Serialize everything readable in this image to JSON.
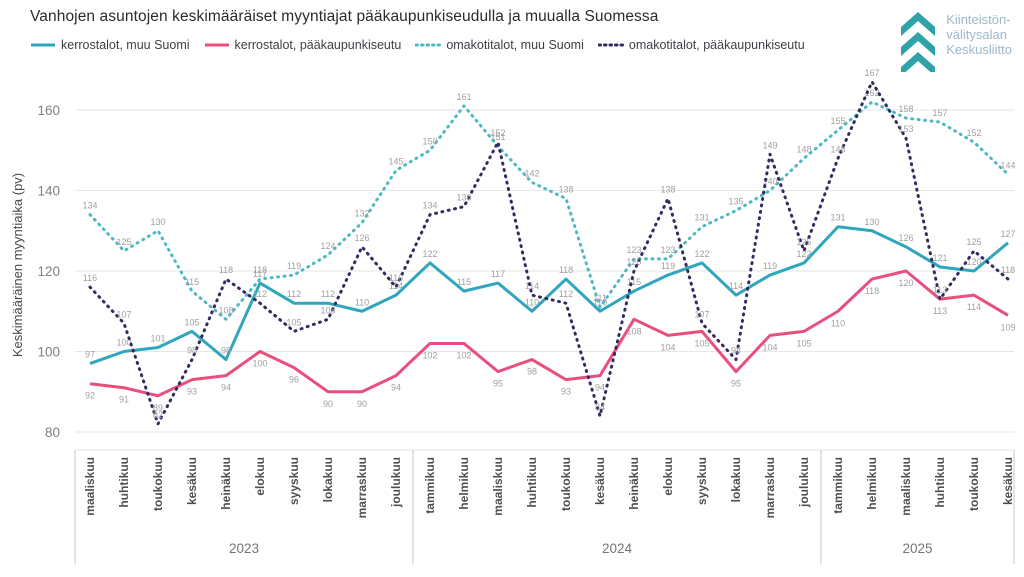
{
  "title": "Vanhojen asuntojen keskimääräiset myyntiajat pääkaupunkiseudulla ja muualla Suomessa",
  "logo": {
    "line1": "Kiinteistön-",
    "line2": "välitysalan",
    "line3": "Keskusliitto",
    "chevron_color": "#2ea2a9",
    "text_color": "#9db8cb"
  },
  "y_axis": {
    "title": "Keskimääräinen myyntiaika (pv)",
    "ticks": [
      80,
      100,
      120,
      140,
      160
    ]
  },
  "chart_data": {
    "type": "line",
    "categories": [
      "maaliskuu",
      "huhtikuu",
      "toukokuu",
      "kesäkuu",
      "heinäkuu",
      "elokuu",
      "syyskuu",
      "lokakuu",
      "marraskuu",
      "joulukuu",
      "tammikuu",
      "helmikuu",
      "maaliskuu",
      "huhtikuu",
      "toukokuu",
      "kesäkuu",
      "heinäkuu",
      "elokuu",
      "syyskuu",
      "lokakuu",
      "marraskuu",
      "joulukuu",
      "tammikuu",
      "helmikuu",
      "maaliskuu",
      "huhtikuu",
      "toukokuu",
      "kesäkuu"
    ],
    "year_groups": [
      {
        "label": "2023",
        "count": 10
      },
      {
        "label": "2024",
        "count": 12
      },
      {
        "label": "2025",
        "count": 6
      }
    ],
    "xlabel": "",
    "ylabel": "Keskimääräinen myyntiaika (pv)",
    "ylim": [
      80,
      170
    ],
    "grid": true,
    "legend_position": "top",
    "series": [
      {
        "name": "kerrostalot, muu Suomi",
        "color": "#2fa6bc",
        "dash": "solid",
        "label_pos": "above",
        "values": [
          97,
          100,
          101,
          105,
          98,
          117,
          112,
          112,
          110,
          114,
          122,
          115,
          117,
          110,
          118,
          110,
          115,
          119,
          122,
          114,
          119,
          122,
          131,
          130,
          126,
          121,
          120,
          127
        ]
      },
      {
        "name": "kerrostalot, pääkaupunkiseutu",
        "color": "#e94f7d",
        "dash": "solid",
        "label_pos": "below",
        "values": [
          92,
          91,
          89,
          93,
          94,
          100,
          96,
          90,
          90,
          94,
          102,
          102,
          95,
          98,
          93,
          94,
          108,
          104,
          105,
          95,
          104,
          105,
          110,
          118,
          120,
          113,
          114,
          109
        ]
      },
      {
        "name": "omakotitalot, muu Suomi",
        "color": "#4db9c5",
        "dash": "dotted",
        "label_pos": "above",
        "values": [
          134,
          125,
          130,
          115,
          108,
          118,
          119,
          124,
          132,
          145,
          150,
          161,
          151,
          142,
          138,
          111,
          123,
          123,
          131,
          135,
          140,
          148,
          155,
          162,
          158,
          157,
          152,
          144
        ]
      },
      {
        "name": "omakotitalot, pääkaupunkiseutu",
        "color": "#322a60",
        "dash": "dotted",
        "label_pos": "above",
        "values": [
          116,
          107,
          82,
          98,
          118,
          112,
          105,
          108,
          126,
          116,
          134,
          136,
          152,
          114,
          112,
          84,
          120,
          138,
          107,
          98,
          149,
          125,
          148,
          167,
          153,
          113,
          125,
          118
        ]
      }
    ],
    "colors": {
      "grid": "#e6e6e6",
      "data_label": "#a0a0a0",
      "tick_label": "#808080",
      "month_label": "#4f4f4f",
      "year_label": "#757575",
      "separator": "#c9c9c9"
    }
  }
}
